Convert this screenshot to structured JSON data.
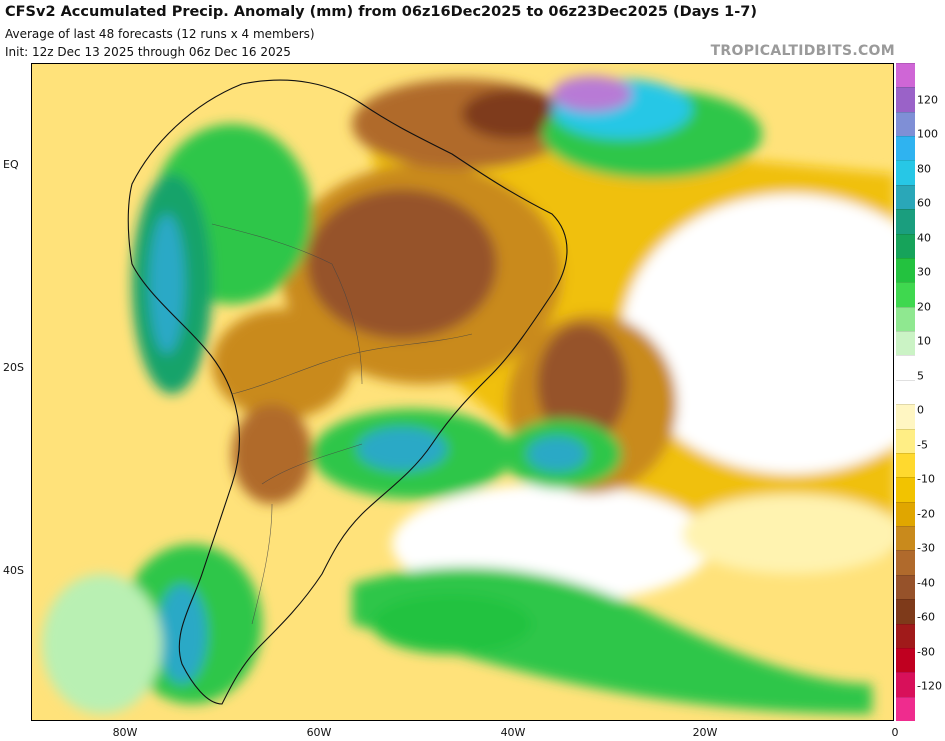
{
  "header": {
    "title": "CFSv2 Accumulated Precip. Anomaly (mm) from 06z16Dec2025 to 06z23Dec2025 (Days 1-7)",
    "line2": "Average of last 48 forecasts (12 runs x 4 members)",
    "line3": "Init: 12z Dec 13 2025 through 06z Dec 16 2025"
  },
  "brand": "TROPICALTIDBITS.COM",
  "axes": {
    "lat_labels": [
      "EQ",
      "20S",
      "40S"
    ],
    "lon_labels": [
      "80W",
      "60W",
      "40W",
      "20W",
      "0"
    ]
  },
  "colorbar": {
    "labels": [
      "120",
      "100",
      "80",
      "60",
      "40",
      "30",
      "20",
      "10",
      "5",
      "0",
      "-5",
      "-10",
      "-20",
      "-30",
      "-40",
      "-60",
      "-80",
      "-120"
    ],
    "colors": [
      "#cf66d6",
      "#9a62c8",
      "#7f8fd6",
      "#2fb3f0",
      "#27c7e6",
      "#2aa7b8",
      "#1a9e7e",
      "#16a35a",
      "#23c23f",
      "#3fd84f",
      "#8fe890",
      "#cbf3c5",
      "#ffffff",
      "#ffffff",
      "#fff6c2",
      "#ffee85",
      "#ffd92e",
      "#f2c300",
      "#e0a600",
      "#c98a1c",
      "#b06a2c",
      "#96522a",
      "#7e3a1a",
      "#a01a1a",
      "#c00020",
      "#d8105a",
      "#ef2c8e"
    ]
  },
  "legend_colors": {
    "strong_dry": "#8b4a22",
    "dry": "#d8a21b",
    "weak_dry": "#ffe27a",
    "neutral": "#ffffff",
    "weak_wet": "#b9f0b3",
    "wet": "#2ec64a",
    "very_wet": "#15a36a",
    "wettest": "#29a9c6",
    "extreme": "#b87ad6"
  }
}
